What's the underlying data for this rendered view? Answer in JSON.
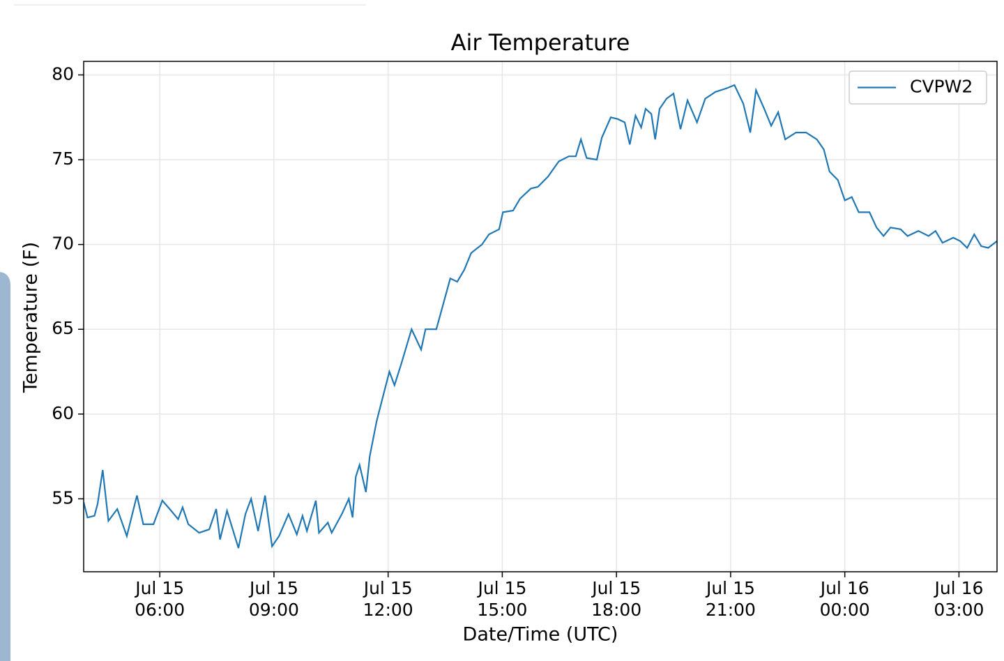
{
  "chart_data": {
    "type": "line",
    "title": "Air Temperature",
    "x_label": "Date/Time (UTC)",
    "y_label": "Temperature (F)",
    "x": [
      "Jul 15 04:00",
      "Jul 15 04:06",
      "Jul 15 04:17",
      "Jul 15 04:22",
      "Jul 15 04:30",
      "Jul 15 04:39",
      "Jul 15 04:53",
      "Jul 15 05:08",
      "Jul 15 05:24",
      "Jul 15 05:34",
      "Jul 15 05:50",
      "Jul 15 06:04",
      "Jul 15 06:18",
      "Jul 15 06:29",
      "Jul 15 06:36",
      "Jul 15 06:45",
      "Jul 15 07:02",
      "Jul 15 07:18",
      "Jul 15 07:29",
      "Jul 15 07:35",
      "Jul 15 07:46",
      "Jul 15 08:04",
      "Jul 15 08:15",
      "Jul 15 08:24",
      "Jul 15 08:35",
      "Jul 15 08:46",
      "Jul 15 08:57",
      "Jul 15 09:08",
      "Jul 15 09:23",
      "Jul 15 09:36",
      "Jul 15 09:45",
      "Jul 15 09:52",
      "Jul 15 10:06",
      "Jul 15 10:11",
      "Jul 15 10:25",
      "Jul 15 10:31",
      "Jul 15 10:47",
      "Jul 15 10:58",
      "Jul 15 11:04",
      "Jul 15 11:09",
      "Jul 15 11:15",
      "Jul 15 11:25",
      "Jul 15 11:31",
      "Jul 15 11:42",
      "Jul 15 11:53",
      "Jul 15 12:02",
      "Jul 15 12:10",
      "Jul 15 12:21",
      "Jul 15 12:37",
      "Jul 15 12:52",
      "Jul 15 12:59",
      "Jul 15 13:16",
      "Jul 15 13:27",
      "Jul 15 13:38",
      "Jul 15 13:49",
      "Jul 15 14:00",
      "Jul 15 14:11",
      "Jul 15 14:28",
      "Jul 15 14:39",
      "Jul 15 14:55",
      "Jul 15 15:01",
      "Jul 15 15:17",
      "Jul 15 15:28",
      "Jul 15 15:45",
      "Jul 15 15:56",
      "Jul 15 16:12",
      "Jul 15 16:29",
      "Jul 15 16:45",
      "Jul 15 16:56",
      "Jul 15 17:04",
      "Jul 15 17:13",
      "Jul 15 17:29",
      "Jul 15 17:37",
      "Jul 15 17:51",
      "Jul 15 18:02",
      "Jul 15 18:13",
      "Jul 15 18:21",
      "Jul 15 18:30",
      "Jul 15 18:39",
      "Jul 15 18:46",
      "Jul 15 18:55",
      "Jul 15 19:01",
      "Jul 15 19:08",
      "Jul 15 19:19",
      "Jul 15 19:30",
      "Jul 15 19:41",
      "Jul 15 19:52",
      "Jul 15 20:07",
      "Jul 15 20:20",
      "Jul 15 20:36",
      "Jul 15 20:53",
      "Jul 15 21:06",
      "Jul 15 21:20",
      "Jul 15 21:31",
      "Jul 15 21:40",
      "Jul 15 21:53",
      "Jul 15 22:04",
      "Jul 15 22:15",
      "Jul 15 22:26",
      "Jul 15 22:43",
      "Jul 15 22:59",
      "Jul 15 23:16",
      "Jul 15 23:27",
      "Jul 15 23:36",
      "Jul 15 23:49",
      "Jul 16 00:00",
      "Jul 16 00:11",
      "Jul 16 00:22",
      "Jul 16 00:39",
      "Jul 16 00:50",
      "Jul 16 01:01",
      "Jul 16 01:12",
      "Jul 16 01:28",
      "Jul 16 01:39",
      "Jul 16 01:56",
      "Jul 16 02:12",
      "Jul 16 02:23",
      "Jul 16 02:34",
      "Jul 16 02:51",
      "Jul 16 03:02",
      "Jul 16 03:13",
      "Jul 16 03:24",
      "Jul 16 03:35",
      "Jul 16 03:46",
      "Jul 16 04:00"
    ],
    "series": [
      {
        "name": "CVPW2",
        "color": "#1f77b4",
        "values": [
          54.8,
          53.9,
          54.0,
          54.7,
          56.7,
          53.7,
          54.4,
          52.8,
          55.2,
          53.5,
          53.5,
          54.9,
          54.3,
          53.8,
          54.5,
          53.5,
          53.0,
          53.2,
          54.4,
          52.6,
          54.3,
          52.1,
          54.1,
          55.0,
          53.1,
          55.2,
          52.2,
          52.8,
          54.1,
          52.9,
          54.0,
          53.1,
          54.9,
          53.0,
          53.6,
          53.0,
          54.1,
          55.0,
          53.9,
          56.3,
          57.0,
          55.4,
          57.5,
          59.6,
          61.2,
          62.5,
          61.7,
          63.0,
          65.0,
          63.8,
          65.0,
          65.0,
          66.5,
          68.0,
          67.8,
          68.5,
          69.5,
          70.0,
          70.6,
          70.9,
          71.9,
          72.0,
          72.7,
          73.3,
          73.4,
          74.0,
          74.9,
          75.2,
          75.2,
          76.2,
          75.1,
          75.0,
          76.3,
          77.5,
          77.4,
          77.2,
          75.9,
          77.6,
          76.9,
          78.0,
          77.7,
          76.2,
          78.0,
          78.6,
          78.9,
          76.8,
          78.5,
          77.2,
          78.6,
          79.0,
          79.2,
          79.4,
          78.3,
          76.6,
          79.1,
          78.0,
          77.0,
          77.8,
          76.2,
          76.6,
          76.6,
          76.2,
          75.6,
          74.3,
          73.8,
          72.6,
          72.8,
          71.9,
          71.9,
          71.0,
          70.5,
          71.0,
          70.9,
          70.5,
          70.8,
          70.5,
          70.8,
          70.1,
          70.4,
          70.2,
          69.8,
          70.6,
          69.9,
          69.8,
          70.2
        ]
      }
    ],
    "xlim": [
      "Jul 15 04:00",
      "Jul 16 04:00"
    ],
    "xticks": [
      {
        "value": "Jul 15 06:00",
        "label": [
          "Jul 15",
          "06:00"
        ]
      },
      {
        "value": "Jul 15 09:00",
        "label": [
          "Jul 15",
          "09:00"
        ]
      },
      {
        "value": "Jul 15 12:00",
        "label": [
          "Jul 15",
          "12:00"
        ]
      },
      {
        "value": "Jul 15 15:00",
        "label": [
          "Jul 15",
          "15:00"
        ]
      },
      {
        "value": "Jul 15 18:00",
        "label": [
          "Jul 15",
          "18:00"
        ]
      },
      {
        "value": "Jul 15 21:00",
        "label": [
          "Jul 15",
          "21:00"
        ]
      },
      {
        "value": "Jul 16 00:00",
        "label": [
          "Jul 16",
          "00:00"
        ]
      },
      {
        "value": "Jul 16 03:00",
        "label": [
          "Jul 16",
          "03:00"
        ]
      }
    ],
    "ylim": [
      50.7,
      80.8
    ],
    "yticks": [
      55,
      60,
      65,
      70,
      75,
      80
    ],
    "grid": true,
    "legend": "upper right"
  }
}
